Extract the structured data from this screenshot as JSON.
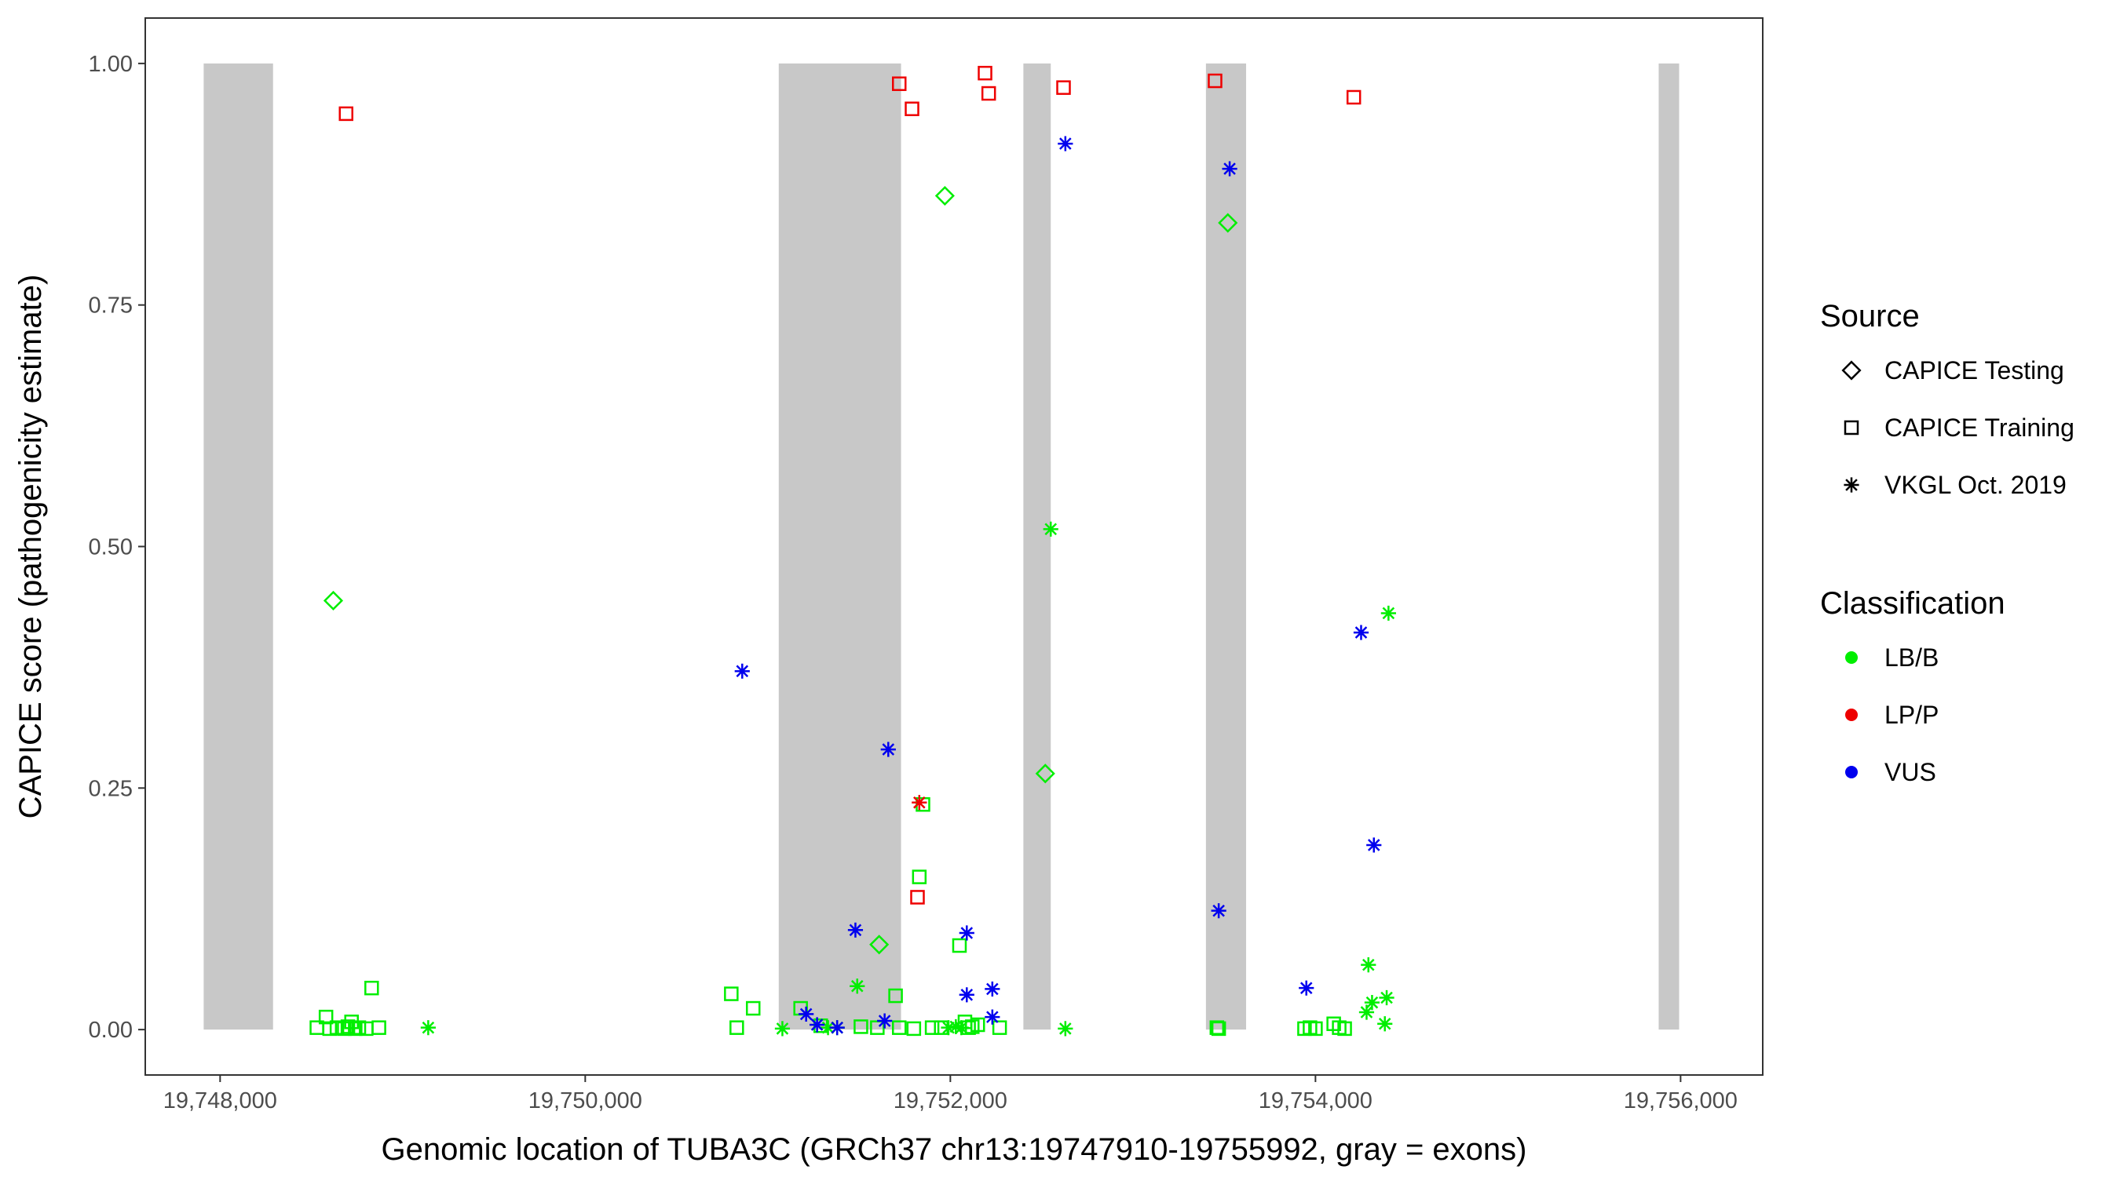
{
  "chart_data": {
    "type": "scatter",
    "xlabel": "Genomic location of TUBA3C (GRCh37 chr13:19747910-19755992, gray = exons)",
    "ylabel": "CAPICE score (pathogenicity estimate)",
    "xlim": [
      19747590,
      19756450
    ],
    "ylim": [
      -0.047,
      1.047
    ],
    "x_ticks": [
      19748000,
      19750000,
      19752000,
      19754000,
      19756000
    ],
    "x_tick_labels": [
      "19,748,000",
      "19,750,000",
      "19,752,000",
      "19,754,000",
      "19,756,000"
    ],
    "y_ticks": [
      0,
      0.25,
      0.5,
      0.75,
      1.0
    ],
    "y_tick_labels": [
      "0.00",
      "0.25",
      "0.50",
      "0.75",
      "1.00"
    ],
    "grid": false,
    "exons": [
      {
        "start": 19747910,
        "end": 19748290
      },
      {
        "start": 19751060,
        "end": 19751730
      },
      {
        "start": 19752400,
        "end": 19752550
      },
      {
        "start": 19753400,
        "end": 19753620
      },
      {
        "start": 19755880,
        "end": 19755992
      }
    ],
    "exon_color": "#c8c8c8",
    "legend": {
      "position": "right",
      "source_title": "Source",
      "source_items": [
        {
          "label": "CAPICE Testing",
          "shape": "diamond"
        },
        {
          "label": "CAPICE Training",
          "shape": "square"
        },
        {
          "label": "VKGL Oct. 2019",
          "shape": "asterisk"
        }
      ],
      "class_title": "Classification",
      "class_items": [
        {
          "label": "LB/B",
          "color": "#00ee00"
        },
        {
          "label": "LP/P",
          "color": "#ee0000"
        },
        {
          "label": "VUS",
          "color": "#0000ee"
        }
      ]
    },
    "series": [
      {
        "source": "CAPICE Training",
        "classification": "LP/P",
        "points": [
          [
            19748690,
            0.948
          ],
          [
            19751720,
            0.979
          ],
          [
            19751790,
            0.953
          ],
          [
            19752190,
            0.99
          ],
          [
            19752210,
            0.969
          ],
          [
            19752620,
            0.975
          ],
          [
            19753450,
            0.982
          ],
          [
            19754210,
            0.965
          ],
          [
            19751820,
            0.137
          ]
        ]
      },
      {
        "source": "CAPICE Training",
        "classification": "LB/B",
        "points": [
          [
            19748530,
            0.002
          ],
          [
            19748580,
            0.013
          ],
          [
            19748600,
            0.001
          ],
          [
            19748640,
            0.002
          ],
          [
            19748680,
            0.001
          ],
          [
            19748700,
            0.003
          ],
          [
            19748720,
            0.008
          ],
          [
            19748740,
            0.001
          ],
          [
            19748760,
            0.002
          ],
          [
            19748800,
            0.001
          ],
          [
            19748830,
            0.043
          ],
          [
            19748870,
            0.002
          ],
          [
            19750800,
            0.037
          ],
          [
            19750830,
            0.002
          ],
          [
            19750920,
            0.022
          ],
          [
            19751180,
            0.022
          ],
          [
            19751290,
            0.004
          ],
          [
            19751510,
            0.003
          ],
          [
            19751600,
            0.002
          ],
          [
            19751700,
            0.035
          ],
          [
            19751720,
            0.002
          ],
          [
            19751800,
            0.001
          ],
          [
            19751830,
            0.158
          ],
          [
            19751850,
            0.233
          ],
          [
            19751900,
            0.002
          ],
          [
            19751950,
            0.002
          ],
          [
            19752050,
            0.087
          ],
          [
            19752080,
            0.008
          ],
          [
            19752100,
            0.002
          ],
          [
            19752120,
            0.003
          ],
          [
            19752150,
            0.005
          ],
          [
            19752270,
            0.002
          ],
          [
            19753460,
            0.002
          ],
          [
            19753470,
            0.001
          ],
          [
            19753940,
            0.001
          ],
          [
            19753970,
            0.002
          ],
          [
            19754000,
            0.001
          ],
          [
            19754100,
            0.006
          ],
          [
            19754130,
            0.002
          ],
          [
            19754160,
            0.001
          ]
        ]
      },
      {
        "source": "CAPICE Testing",
        "classification": "LB/B",
        "points": [
          [
            19748620,
            0.444
          ],
          [
            19751970,
            0.863
          ],
          [
            19751610,
            0.088
          ],
          [
            19752520,
            0.265
          ],
          [
            19753520,
            0.835
          ]
        ]
      },
      {
        "source": "VKGL Oct. 2019",
        "classification": "LB/B",
        "points": [
          [
            19749140,
            0.002
          ],
          [
            19751080,
            0.001
          ],
          [
            19751330,
            0.002
          ],
          [
            19751380,
            0.002
          ],
          [
            19751490,
            0.045
          ],
          [
            19751990,
            0.002
          ],
          [
            19752030,
            0.003
          ],
          [
            19752060,
            0.002
          ],
          [
            19752550,
            0.518
          ],
          [
            19752630,
            0.001
          ],
          [
            19754290,
            0.067
          ],
          [
            19754310,
            0.028
          ],
          [
            19754280,
            0.018
          ],
          [
            19754390,
            0.033
          ],
          [
            19754380,
            0.006
          ],
          [
            19754400,
            0.431
          ]
        ]
      },
      {
        "source": "VKGL Oct. 2019",
        "classification": "VUS",
        "points": [
          [
            19750860,
            0.371
          ],
          [
            19751210,
            0.016
          ],
          [
            19751270,
            0.005
          ],
          [
            19751380,
            0.002
          ],
          [
            19751480,
            0.103
          ],
          [
            19751640,
            0.009
          ],
          [
            19751660,
            0.29
          ],
          [
            19752090,
            0.1
          ],
          [
            19752090,
            0.036
          ],
          [
            19752230,
            0.042
          ],
          [
            19752230,
            0.013
          ],
          [
            19752630,
            0.917
          ],
          [
            19753470,
            0.123
          ],
          [
            19753530,
            0.891
          ],
          [
            19753950,
            0.043
          ],
          [
            19754250,
            0.411
          ],
          [
            19754320,
            0.191
          ]
        ]
      },
      {
        "source": "VKGL Oct. 2019",
        "classification": "LP/P",
        "points": [
          [
            19751830,
            0.235
          ]
        ]
      }
    ]
  }
}
